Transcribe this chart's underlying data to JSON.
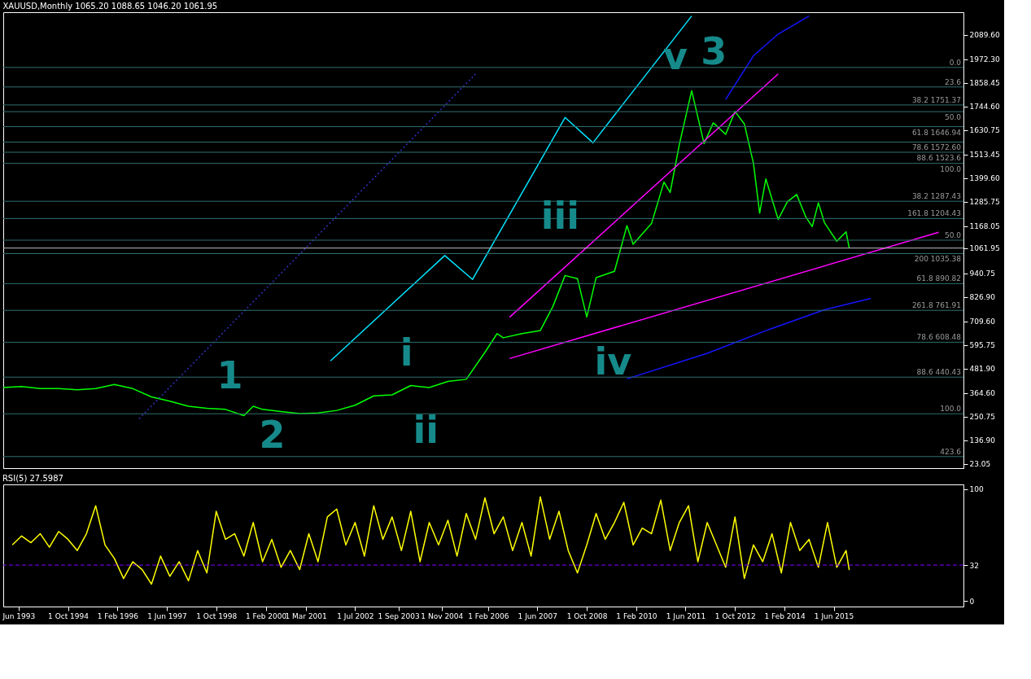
{
  "chart_data": [
    {
      "type": "line",
      "title": "XAUUSD,Monthly  1065.20 1088.65 1046.20 1061.95",
      "xlim": [
        "1993-01",
        "2018-12"
      ],
      "ylim": [
        2.1,
        2198
      ],
      "yticks": [
        {
          "value": 23.05,
          "label": "23.05"
        },
        {
          "value": 136.9,
          "label": "136.90"
        },
        {
          "value": 250.75,
          "label": "250.75"
        },
        {
          "value": 364.6,
          "label": "364.60"
        },
        {
          "value": 481.9,
          "label": "481.90"
        },
        {
          "value": 595.75,
          "label": "595.75"
        },
        {
          "value": 709.6,
          "label": "709.60"
        },
        {
          "value": 826.9,
          "label": "826.90"
        },
        {
          "value": 940.75,
          "label": "940.75"
        },
        {
          "value": 1061.95,
          "label": "1061.95"
        },
        {
          "value": 1168.05,
          "label": "1168.05"
        },
        {
          "value": 1285.75,
          "label": "1285.75"
        },
        {
          "value": 1399.6,
          "label": "1399.60"
        },
        {
          "value": 1513.45,
          "label": "1513.45"
        },
        {
          "value": 1630.75,
          "label": "1630.75"
        },
        {
          "value": 1744.6,
          "label": "1744.60"
        },
        {
          "value": 1858.45,
          "label": "1858.45"
        },
        {
          "value": 1972.3,
          "label": "1972.30"
        },
        {
          "value": 2089.6,
          "label": "2089.60"
        }
      ],
      "tick_labels": "y",
      "grid": false,
      "series": [
        {
          "color": "#00ff00",
          "line_style": "solid",
          "x": [
            "1993-01",
            "1993-07",
            "1994-01",
            "1994-07",
            "1995-01",
            "1995-07",
            "1996-01",
            "1996-07",
            "1997-01",
            "1997-07",
            "1998-01",
            "1998-07",
            "1999-01",
            "1999-07",
            "1999-10",
            "2000-01",
            "2000-07",
            "2001-01",
            "2001-07",
            "2002-01",
            "2002-07",
            "2003-01",
            "2003-07",
            "2004-01",
            "2004-07",
            "2005-01",
            "2005-07",
            "2006-01",
            "2006-05",
            "2006-07",
            "2007-01",
            "2007-07",
            "2007-11",
            "2008-03",
            "2008-07",
            "2008-10",
            "2009-01",
            "2009-07",
            "2009-11",
            "2010-01",
            "2010-07",
            "2010-11",
            "2011-01",
            "2011-04",
            "2011-08",
            "2011-12",
            "2012-03",
            "2012-07",
            "2012-10",
            "2013-01",
            "2013-04",
            "2013-06",
            "2013-08",
            "2013-12",
            "2014-03",
            "2014-06",
            "2014-09",
            "2014-11",
            "2015-01",
            "2015-03",
            "2015-07",
            "2015-10",
            "2015-11"
          ],
          "values": [
            390,
            395,
            385,
            385,
            380,
            385,
            405,
            385,
            345,
            325,
            300,
            290,
            285,
            255,
            300,
            285,
            275,
            265,
            268,
            280,
            305,
            350,
            355,
            400,
            390,
            420,
            430,
            560,
            650,
            630,
            650,
            665,
            780,
            930,
            915,
            730,
            920,
            950,
            1170,
            1080,
            1180,
            1380,
            1330,
            1560,
            1820,
            1565,
            1665,
            1610,
            1720,
            1660,
            1470,
            1230,
            1395,
            1200,
            1285,
            1320,
            1210,
            1165,
            1280,
            1185,
            1095,
            1140,
            1062
          ]
        },
        {
          "color": "#1515ff",
          "line_style": "solid",
          "x": [
            "2012-07",
            "2013-04",
            "2013-12",
            "2014-10"
          ],
          "values": [
            1778,
            1988,
            2093,
            2180
          ]
        },
        {
          "color": "#1515ff",
          "line_style": "solid",
          "x": [
            "2009-11",
            "2012-01",
            "2013-09",
            "2015-03",
            "2016-06"
          ],
          "values": [
            432,
            555,
            670,
            765,
            820
          ]
        },
        {
          "color": "#ff00ff",
          "line_style": "solid",
          "x": [
            "2006-09",
            "2013-12"
          ],
          "values": [
            729,
            1901
          ]
        },
        {
          "color": "#ff00ff",
          "line_style": "solid",
          "x": [
            "2006-09",
            "2018-04"
          ],
          "values": [
            530,
            1138
          ]
        },
        {
          "color": "#3030c0",
          "line_style": "dotted",
          "x": [
            "1996-09",
            "2005-10"
          ],
          "values": [
            240,
            1901
          ]
        },
        {
          "color": "#00e5ff",
          "line_style": "solid",
          "x": [
            "2001-11",
            "2004-12",
            "2005-09",
            "2008-03",
            "2008-12",
            "2011-08"
          ],
          "values": [
            519,
            1026,
            911,
            1691,
            1569,
            2180
          ]
        }
      ],
      "ref_lines": [
        {
          "axis": "y",
          "value": 1932,
          "label": null
        },
        {
          "axis": "y",
          "value": 1838,
          "label": null
        },
        {
          "axis": "y",
          "value": 1751.37,
          "label": "38.2 1751.37"
        },
        {
          "axis": "y",
          "value": 1719,
          "label": null
        },
        {
          "axis": "y",
          "value": 1646.94,
          "label": "61.8 1646.94"
        },
        {
          "axis": "y",
          "value": 1572.6,
          "label": "78.6 1572.60"
        },
        {
          "axis": "y",
          "value": 1523.6,
          "label": "88.6 1523.6"
        },
        {
          "axis": "y",
          "value": 1470,
          "label": null
        },
        {
          "axis": "y",
          "value": 1287.43,
          "label": "38.2 1287.43"
        },
        {
          "axis": "y",
          "value": 1204.43,
          "label": "161.8 1204.43"
        },
        {
          "axis": "y",
          "value": 1100,
          "label": null
        },
        {
          "axis": "y",
          "value": 1061.95,
          "label": null,
          "color": "#c0c0c0"
        },
        {
          "axis": "y",
          "value": 1035.38,
          "label": "200 1035.38"
        },
        {
          "axis": "y",
          "value": 890.82,
          "label": "61.8 890.82"
        },
        {
          "axis": "y",
          "value": 761.91,
          "label": "261.8 761.91"
        },
        {
          "axis": "y",
          "value": 608.48,
          "label": "78.6 608.48"
        },
        {
          "axis": "y",
          "value": 440.43,
          "label": "88.6 440.43"
        },
        {
          "axis": "y",
          "value": 264,
          "label": null
        },
        {
          "axis": "y",
          "value": 58,
          "label": null
        }
      ],
      "annotations": [
        {
          "text": "0.0",
          "y": 1932
        },
        {
          "text": "23.6",
          "y": 1838
        },
        {
          "text": "50.0",
          "y": 1719
        },
        {
          "text": "100.0",
          "y": 1470
        },
        {
          "text": "50.0",
          "y": 1100
        },
        {
          "text": "100.0",
          "y": 264
        },
        {
          "text": "423.6",
          "y": 58
        },
        "1",
        "2",
        "3",
        "i",
        "ii",
        "iii",
        "iv",
        "v"
      ]
    },
    {
      "type": "line",
      "title": "RSI(5) 27.5987",
      "xlim": [
        "1993-01",
        "2018-12"
      ],
      "ylim": [
        -5,
        104
      ],
      "yticks": [
        0,
        32,
        100
      ],
      "grid": false,
      "xticks": [
        {
          "value": "1993-06",
          "label": "Jun 1993"
        },
        {
          "value": "1994-10",
          "label": "1 Oct 1994"
        },
        {
          "value": "1996-02",
          "label": "1 Feb 1996"
        },
        {
          "value": "1997-06",
          "label": "1 Jun 1997"
        },
        {
          "value": "1998-10",
          "label": "1 Oct 1998"
        },
        {
          "value": "2000-02",
          "label": "1 Feb 2000"
        },
        {
          "value": "2001-03",
          "label": "1 Mar 2001"
        },
        {
          "value": "2002-07",
          "label": "1 Jul 2002"
        },
        {
          "value": "2003-09",
          "label": "1 Sep 2003"
        },
        {
          "value": "2004-11",
          "label": "1 Nov 2004"
        },
        {
          "value": "2006-02",
          "label": "1 Feb 2006"
        },
        {
          "value": "2007-06",
          "label": "1 Jun 2007"
        },
        {
          "value": "2008-10",
          "label": "1 Oct 2008"
        },
        {
          "value": "2010-02",
          "label": "1 Feb 2010"
        },
        {
          "value": "2011-06",
          "label": "1 Jun 2011"
        },
        {
          "value": "2012-10",
          "label": "1 Oct 2012"
        },
        {
          "value": "2014-02",
          "label": "1 Feb 2014"
        },
        {
          "value": "2015-06",
          "label": "1 Jun 2015"
        }
      ],
      "series": [
        {
          "color": "#ffff00",
          "line_style": "solid",
          "x": [
            "1993-04",
            "1993-07",
            "1993-10",
            "1994-01",
            "1994-04",
            "1994-07",
            "1994-10",
            "1995-01",
            "1995-04",
            "1995-07",
            "1995-10",
            "1996-01",
            "1996-04",
            "1996-07",
            "1996-10",
            "1997-01",
            "1997-04",
            "1997-07",
            "1997-10",
            "1998-01",
            "1998-04",
            "1998-07",
            "1998-10",
            "1999-01",
            "1999-04",
            "1999-07",
            "1999-10",
            "2000-01",
            "2000-04",
            "2000-07",
            "2000-10",
            "2001-01",
            "2001-04",
            "2001-07",
            "2001-10",
            "2002-01",
            "2002-04",
            "2002-07",
            "2002-10",
            "2003-01",
            "2003-04",
            "2003-07",
            "2003-10",
            "2004-01",
            "2004-04",
            "2004-07",
            "2004-10",
            "2005-01",
            "2005-04",
            "2005-07",
            "2005-10",
            "2006-01",
            "2006-04",
            "2006-07",
            "2006-10",
            "2007-01",
            "2007-04",
            "2007-07",
            "2007-10",
            "2008-01",
            "2008-04",
            "2008-07",
            "2008-10",
            "2009-01",
            "2009-04",
            "2009-07",
            "2009-10",
            "2010-01",
            "2010-04",
            "2010-07",
            "2010-10",
            "2011-01",
            "2011-04",
            "2011-07",
            "2011-10",
            "2012-01",
            "2012-04",
            "2012-07",
            "2012-10",
            "2013-01",
            "2013-04",
            "2013-07",
            "2013-10",
            "2014-01",
            "2014-04",
            "2014-07",
            "2014-10",
            "2015-01",
            "2015-04",
            "2015-07",
            "2015-10",
            "2015-11"
          ],
          "values": [
            50,
            58,
            52,
            60,
            48,
            62,
            55,
            45,
            60,
            85,
            50,
            38,
            20,
            35,
            28,
            15,
            40,
            22,
            35,
            18,
            45,
            25,
            80,
            55,
            60,
            40,
            70,
            35,
            55,
            30,
            45,
            28,
            60,
            35,
            75,
            82,
            50,
            70,
            40,
            85,
            55,
            75,
            45,
            80,
            35,
            70,
            50,
            72,
            40,
            78,
            55,
            92,
            60,
            75,
            45,
            70,
            40,
            93,
            55,
            80,
            45,
            25,
            50,
            78,
            55,
            70,
            88,
            50,
            65,
            60,
            90,
            45,
            70,
            85,
            35,
            70,
            50,
            30,
            75,
            20,
            50,
            35,
            60,
            25,
            70,
            45,
            55,
            30,
            70,
            30,
            45,
            27.6
          ]
        }
      ],
      "ref_lines": [
        {
          "axis": "y",
          "value": 32,
          "label": null,
          "color": "#8000ff",
          "line_style": "dashed"
        }
      ]
    }
  ]
}
